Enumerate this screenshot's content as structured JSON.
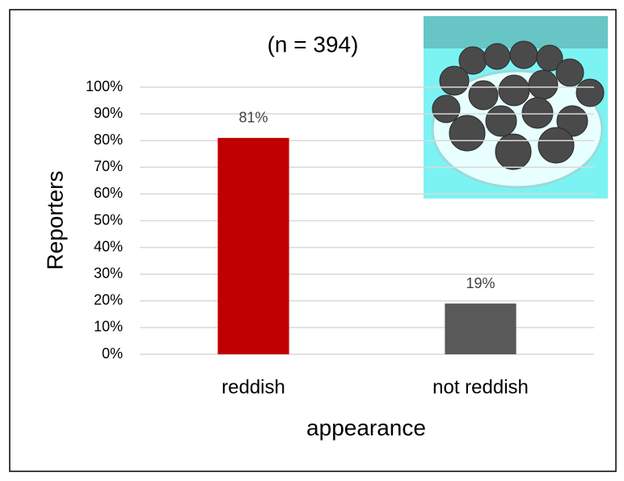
{
  "chart_data": {
    "type": "bar",
    "title": "(n = 394)",
    "x_label": "appearance",
    "y_label": "Reporters",
    "categories": [
      "reddish",
      "not reddish"
    ],
    "values": [
      81,
      19
    ],
    "value_labels": [
      "81%",
      "19%"
    ],
    "colors": [
      "#c00000",
      "#595959"
    ],
    "ylim": [
      0,
      100
    ],
    "yticks": [
      {
        "value": 0,
        "label": "0%"
      },
      {
        "value": 10,
        "label": "10%"
      },
      {
        "value": 20,
        "label": "20%"
      },
      {
        "value": 30,
        "label": "30%"
      },
      {
        "value": 40,
        "label": "40%"
      },
      {
        "value": 50,
        "label": "50%"
      },
      {
        "value": 60,
        "label": "60%"
      },
      {
        "value": 70,
        "label": "70%"
      },
      {
        "value": 80,
        "label": "80%"
      },
      {
        "value": 90,
        "label": "90%"
      },
      {
        "value": 100,
        "label": "100%"
      }
    ],
    "grid": true
  }
}
